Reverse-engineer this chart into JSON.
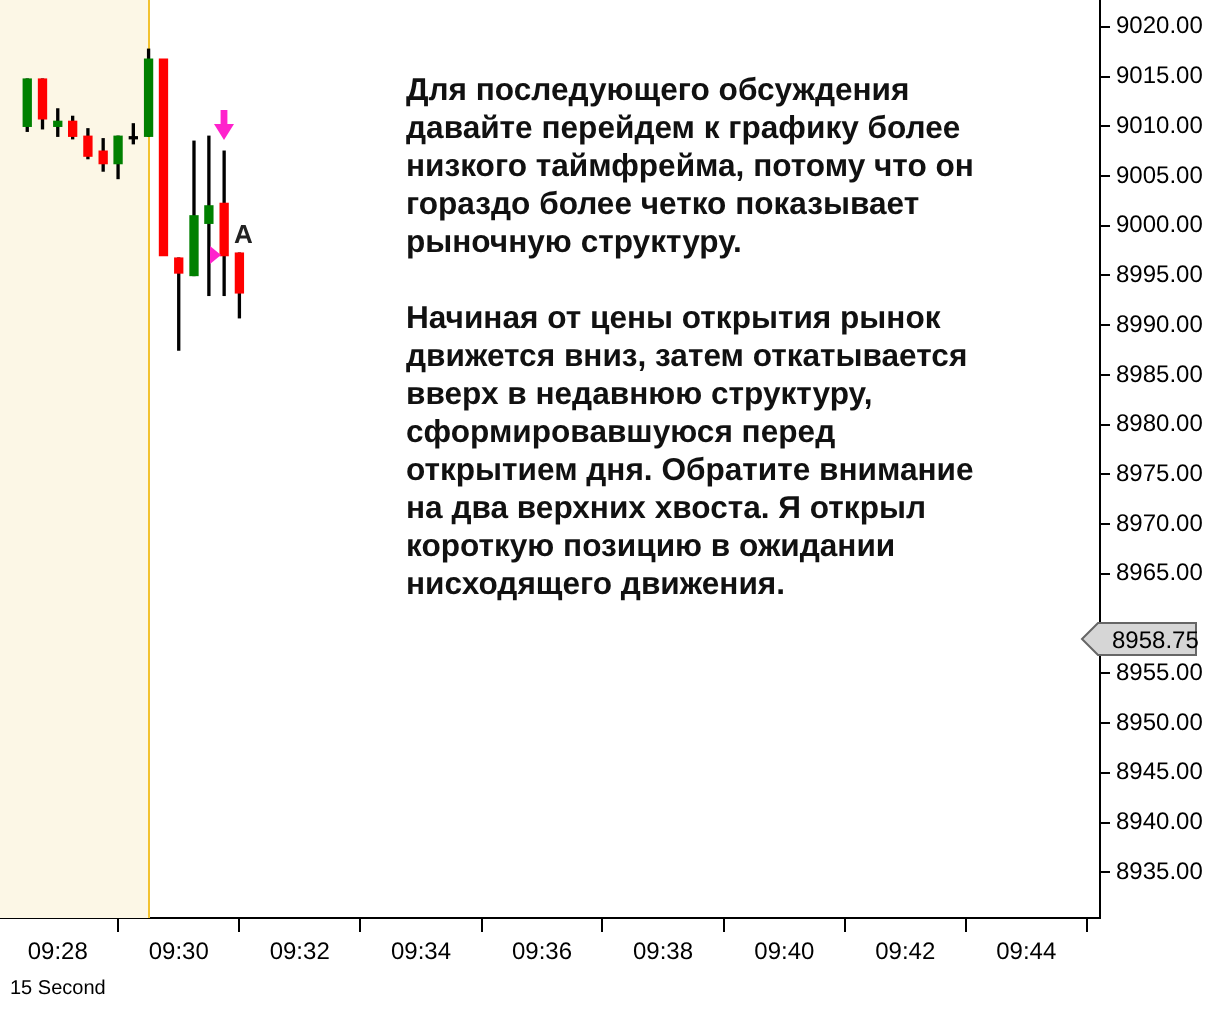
{
  "chart_data": {
    "type": "candlestick",
    "x": [
      9.4583,
      9.4625,
      9.4667,
      9.4708,
      9.475,
      9.4792,
      9.4833,
      9.4875,
      9.4917,
      9.4958,
      9.5,
      9.5042,
      9.5083,
      9.5125,
      9.5167
    ],
    "ohlc": [
      [
        9010,
        9014.75,
        9009.5,
        9014.75
      ],
      [
        9014.75,
        9014.75,
        9009.75,
        9010.75
      ],
      [
        9010,
        9011.75,
        9009,
        9010.5
      ],
      [
        9010.5,
        9011,
        9008.75,
        9009
      ],
      [
        9009,
        9009.75,
        9006.75,
        9007
      ],
      [
        9007.5,
        9008.75,
        9005.5,
        9006.25
      ],
      [
        9006.25,
        9009,
        9004.75,
        9009
      ],
      [
        9008.75,
        9010.25,
        9008.25,
        9008.75
      ],
      [
        9009,
        9017.75,
        9009,
        9016.75
      ],
      [
        9016.75,
        9016.75,
        8997,
        8997
      ],
      [
        8996.75,
        8996.75,
        8987.5,
        8995.25
      ],
      [
        8995,
        9008.5,
        8995,
        9001
      ],
      [
        9000.25,
        9009,
        8993,
        9002
      ],
      [
        9002.25,
        9007.5,
        8993,
        8997
      ],
      [
        8997.25,
        8997.25,
        8990.75,
        8993.25
      ]
    ],
    "colors": [
      "#008000",
      "#ff0000",
      "#008000",
      "#ff0000",
      "#ff0000",
      "#ff0000",
      "#008000",
      "#000000",
      "#008000",
      "#ff0000",
      "#ff0000",
      "#008000",
      "#008000",
      "#ff0000",
      "#ff0000"
    ],
    "xlim": [
      9.4508,
      9.7536
    ],
    "xticks": [
      {
        "value": 9.4667,
        "label": "09:28"
      },
      {
        "value": 9.5,
        "label": "09:30"
      },
      {
        "value": 9.5333,
        "label": "09:32"
      },
      {
        "value": 9.5667,
        "label": "09:34"
      },
      {
        "value": 9.6,
        "label": "09:36"
      },
      {
        "value": 9.6333,
        "label": "09:38"
      },
      {
        "value": 9.6667,
        "label": "09:40"
      },
      {
        "value": 9.7,
        "label": "09:42"
      },
      {
        "value": 9.7333,
        "label": "09:44"
      }
    ],
    "ylim": [
      8930.4,
      9022.7
    ],
    "yticks": [
      {
        "value": 9020,
        "label": "9020.00"
      },
      {
        "value": 9015,
        "label": "9015.00"
      },
      {
        "value": 9010,
        "label": "9010.00"
      },
      {
        "value": 9005,
        "label": "9005.00"
      },
      {
        "value": 9000,
        "label": "9000.00"
      },
      {
        "value": 8995,
        "label": "8995.00"
      },
      {
        "value": 8990,
        "label": "8990.00"
      },
      {
        "value": 8985,
        "label": "8985.00"
      },
      {
        "value": 8980,
        "label": "8980.00"
      },
      {
        "value": 8975,
        "label": "8975.00"
      },
      {
        "value": 8970,
        "label": "8970.00"
      },
      {
        "value": 8965,
        "label": "8965.00"
      },
      {
        "value": 8955,
        "label": "8955.00"
      },
      {
        "value": 8950,
        "label": "8950.00"
      },
      {
        "value": 8945,
        "label": "8945.00"
      },
      {
        "value": 8940,
        "label": "8940.00"
      },
      {
        "value": 8935,
        "label": "8935.00"
      }
    ],
    "bands": [
      {
        "axis": "x",
        "from": 9.4508,
        "to": 9.4917,
        "color": "#fcf7e6"
      }
    ],
    "ref_lines": [
      {
        "axis": "x",
        "value": 9.4917,
        "color": "#f2c230"
      }
    ],
    "annotations": [
      "Для последующего обсуждения давайте перейдем к графику более низкого таймфрейма, потому что он гораздо более четко показывает рыночную структуру.",
      "Начиная от цены открытия рынок движется вниз, затем откатывается вверх в недавнюю структуру, сформировавшуюся перед открытием дня. Обратите внимание на два верхних хвоста. Я открыл короткую позицию в ожидании нисходящего движения.",
      "15 Second",
      "8958.75",
      {
        "text": "A",
        "x": 9.5167,
        "y": 8997.25
      }
    ],
    "grid": false,
    "legend": false
  }
}
